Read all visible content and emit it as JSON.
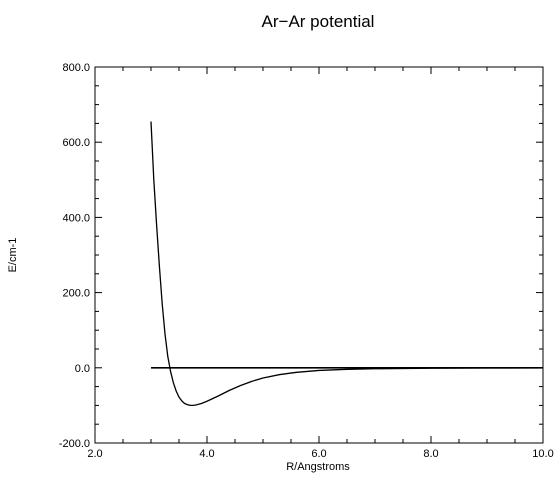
{
  "chart_data": {
    "type": "line",
    "title": "Ar−Ar potential",
    "xlabel": "R/Angstroms",
    "ylabel": "E/cm-1",
    "xlim": [
      2.0,
      10.0
    ],
    "ylim": [
      -200.0,
      800.0
    ],
    "x_ticks": [
      "2.0",
      "4.0",
      "6.0",
      "8.0",
      "10.0"
    ],
    "y_ticks": [
      "-200.0",
      "0.0",
      "200.0",
      "400.0",
      "600.0",
      "800.0"
    ],
    "grid": false,
    "series": [
      {
        "color": "#000000",
        "points": [
          [
            3.0,
            655
          ],
          [
            3.05,
            500
          ],
          [
            3.1,
            380
          ],
          [
            3.15,
            270
          ],
          [
            3.2,
            170
          ],
          [
            3.25,
            90
          ],
          [
            3.3,
            30
          ],
          [
            3.35,
            -10
          ],
          [
            3.4,
            -40
          ],
          [
            3.45,
            -62
          ],
          [
            3.5,
            -78
          ],
          [
            3.55,
            -88
          ],
          [
            3.6,
            -95
          ],
          [
            3.65,
            -98
          ],
          [
            3.7,
            -100
          ],
          [
            3.75,
            -100
          ],
          [
            3.8,
            -99
          ],
          [
            3.9,
            -95
          ],
          [
            4.0,
            -89
          ],
          [
            4.2,
            -75
          ],
          [
            4.4,
            -60
          ],
          [
            4.6,
            -47
          ],
          [
            4.8,
            -36
          ],
          [
            5.0,
            -27
          ],
          [
            5.3,
            -18
          ],
          [
            5.6,
            -12
          ],
          [
            6.0,
            -7
          ],
          [
            6.5,
            -4
          ],
          [
            7.0,
            -2.5
          ],
          [
            8.0,
            -1
          ],
          [
            9.0,
            -0.5
          ],
          [
            10.0,
            0
          ]
        ]
      }
    ],
    "zero_line": {
      "y": 0,
      "x_start": 3.0,
      "x_end": 10.0,
      "color": "#000000"
    }
  }
}
